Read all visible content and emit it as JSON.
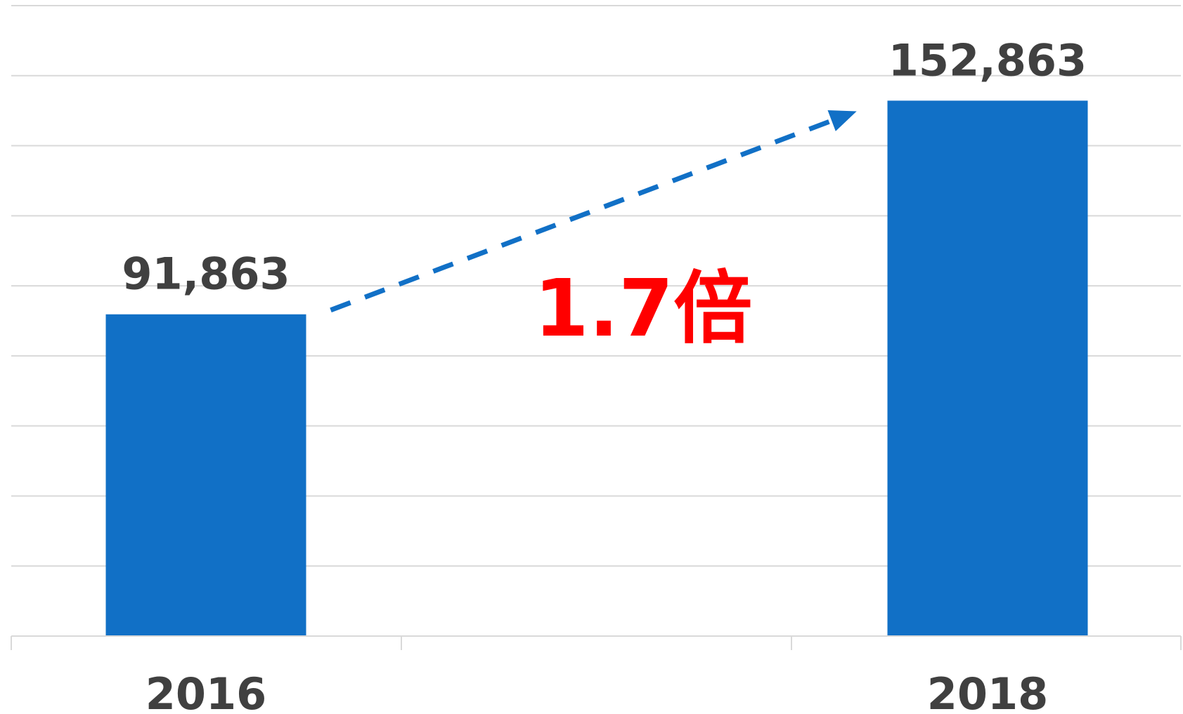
{
  "chart_data": {
    "type": "bar",
    "categories": [
      "2016",
      "2018"
    ],
    "values": [
      91863,
      152863
    ],
    "value_labels": [
      "91,863",
      "152,863"
    ],
    "ylim": [
      0,
      180000
    ],
    "grid": true,
    "annotation": {
      "text": "1.7倍",
      "from_category": "2016",
      "to_category": "2018",
      "style": "dashed-arrow"
    }
  },
  "colors": {
    "bar": "#1170c6",
    "annotation_text": "#ff0000",
    "arrow": "#1170c6",
    "label_text": "#404040"
  }
}
